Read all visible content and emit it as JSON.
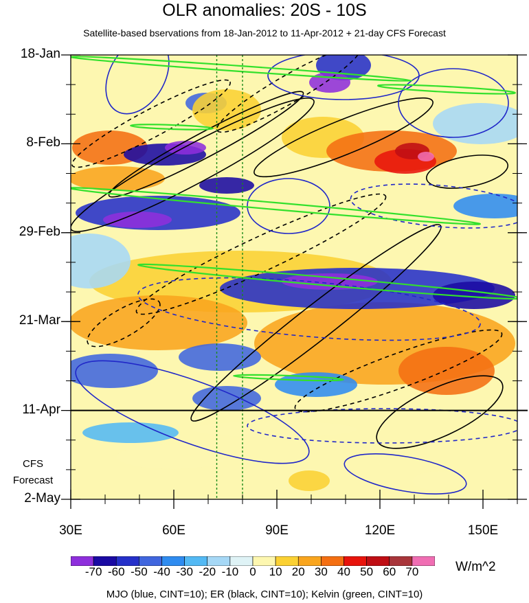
{
  "chart_data": {
    "type": "heatmap",
    "title": "OLR anomalies: 20S - 10S",
    "subtitle": "Satellite-based bservations from 18-Jan-2012 to 11-Apr-2012 + 21-day CFS Forecast",
    "x_ticks": [
      "30E",
      "60E",
      "90E",
      "120E",
      "150E"
    ],
    "x_values": [
      30,
      60,
      90,
      120,
      150
    ],
    "xlim": [
      30,
      160
    ],
    "y_ticks": [
      "18-Jan",
      "8-Feb",
      "29-Feb",
      "21-Mar",
      "11-Apr",
      "2-May"
    ],
    "y_day_index": [
      0,
      21,
      42,
      63,
      84,
      105
    ],
    "ylim_days": [
      0,
      105
    ],
    "forecast_start_day": 84,
    "forecast_label": [
      "CFS",
      "Forecast"
    ],
    "reference_longitudes": [
      72.5,
      80
    ],
    "colorbar": {
      "levels": [
        "-70",
        "-60",
        "-50",
        "-40",
        "-30",
        "-20",
        "-10",
        "0",
        "10",
        "20",
        "30",
        "40",
        "50",
        "60",
        "70"
      ],
      "colors": [
        "#8e2fdc",
        "#1a0aa3",
        "#2530c9",
        "#4066de",
        "#2f8cf0",
        "#53b9f4",
        "#a6d8f6",
        "#dff3f6",
        "#fdf7b0",
        "#fbd133",
        "#f9a51e",
        "#f46f12",
        "#e8140c",
        "#bf0e14",
        "#a8353a",
        "#f06eb3"
      ],
      "units": "W/m^2"
    },
    "contour_legend": "MJO (blue, CINT=10); ER (black, CINT=10); Kelvin (green, CINT=10)"
  }
}
